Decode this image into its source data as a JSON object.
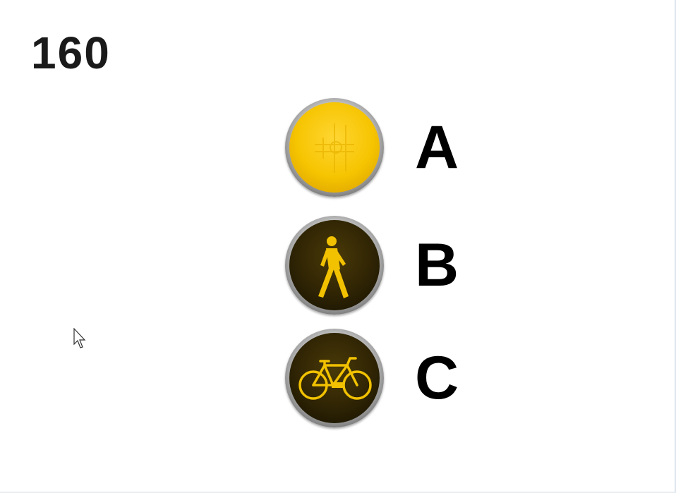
{
  "question": {
    "number": "160"
  },
  "options": [
    {
      "letter": "A",
      "symbol": "plain-yellow-light-icon",
      "lit": true
    },
    {
      "letter": "B",
      "symbol": "pedestrian-icon",
      "lit": false
    },
    {
      "letter": "C",
      "symbol": "bicycle-icon",
      "lit": false
    }
  ],
  "colors": {
    "signal_yellow": "#f6c400",
    "signal_dark": "#2f2404",
    "symbol_yellow": "#f2c200",
    "text": "#000000"
  }
}
